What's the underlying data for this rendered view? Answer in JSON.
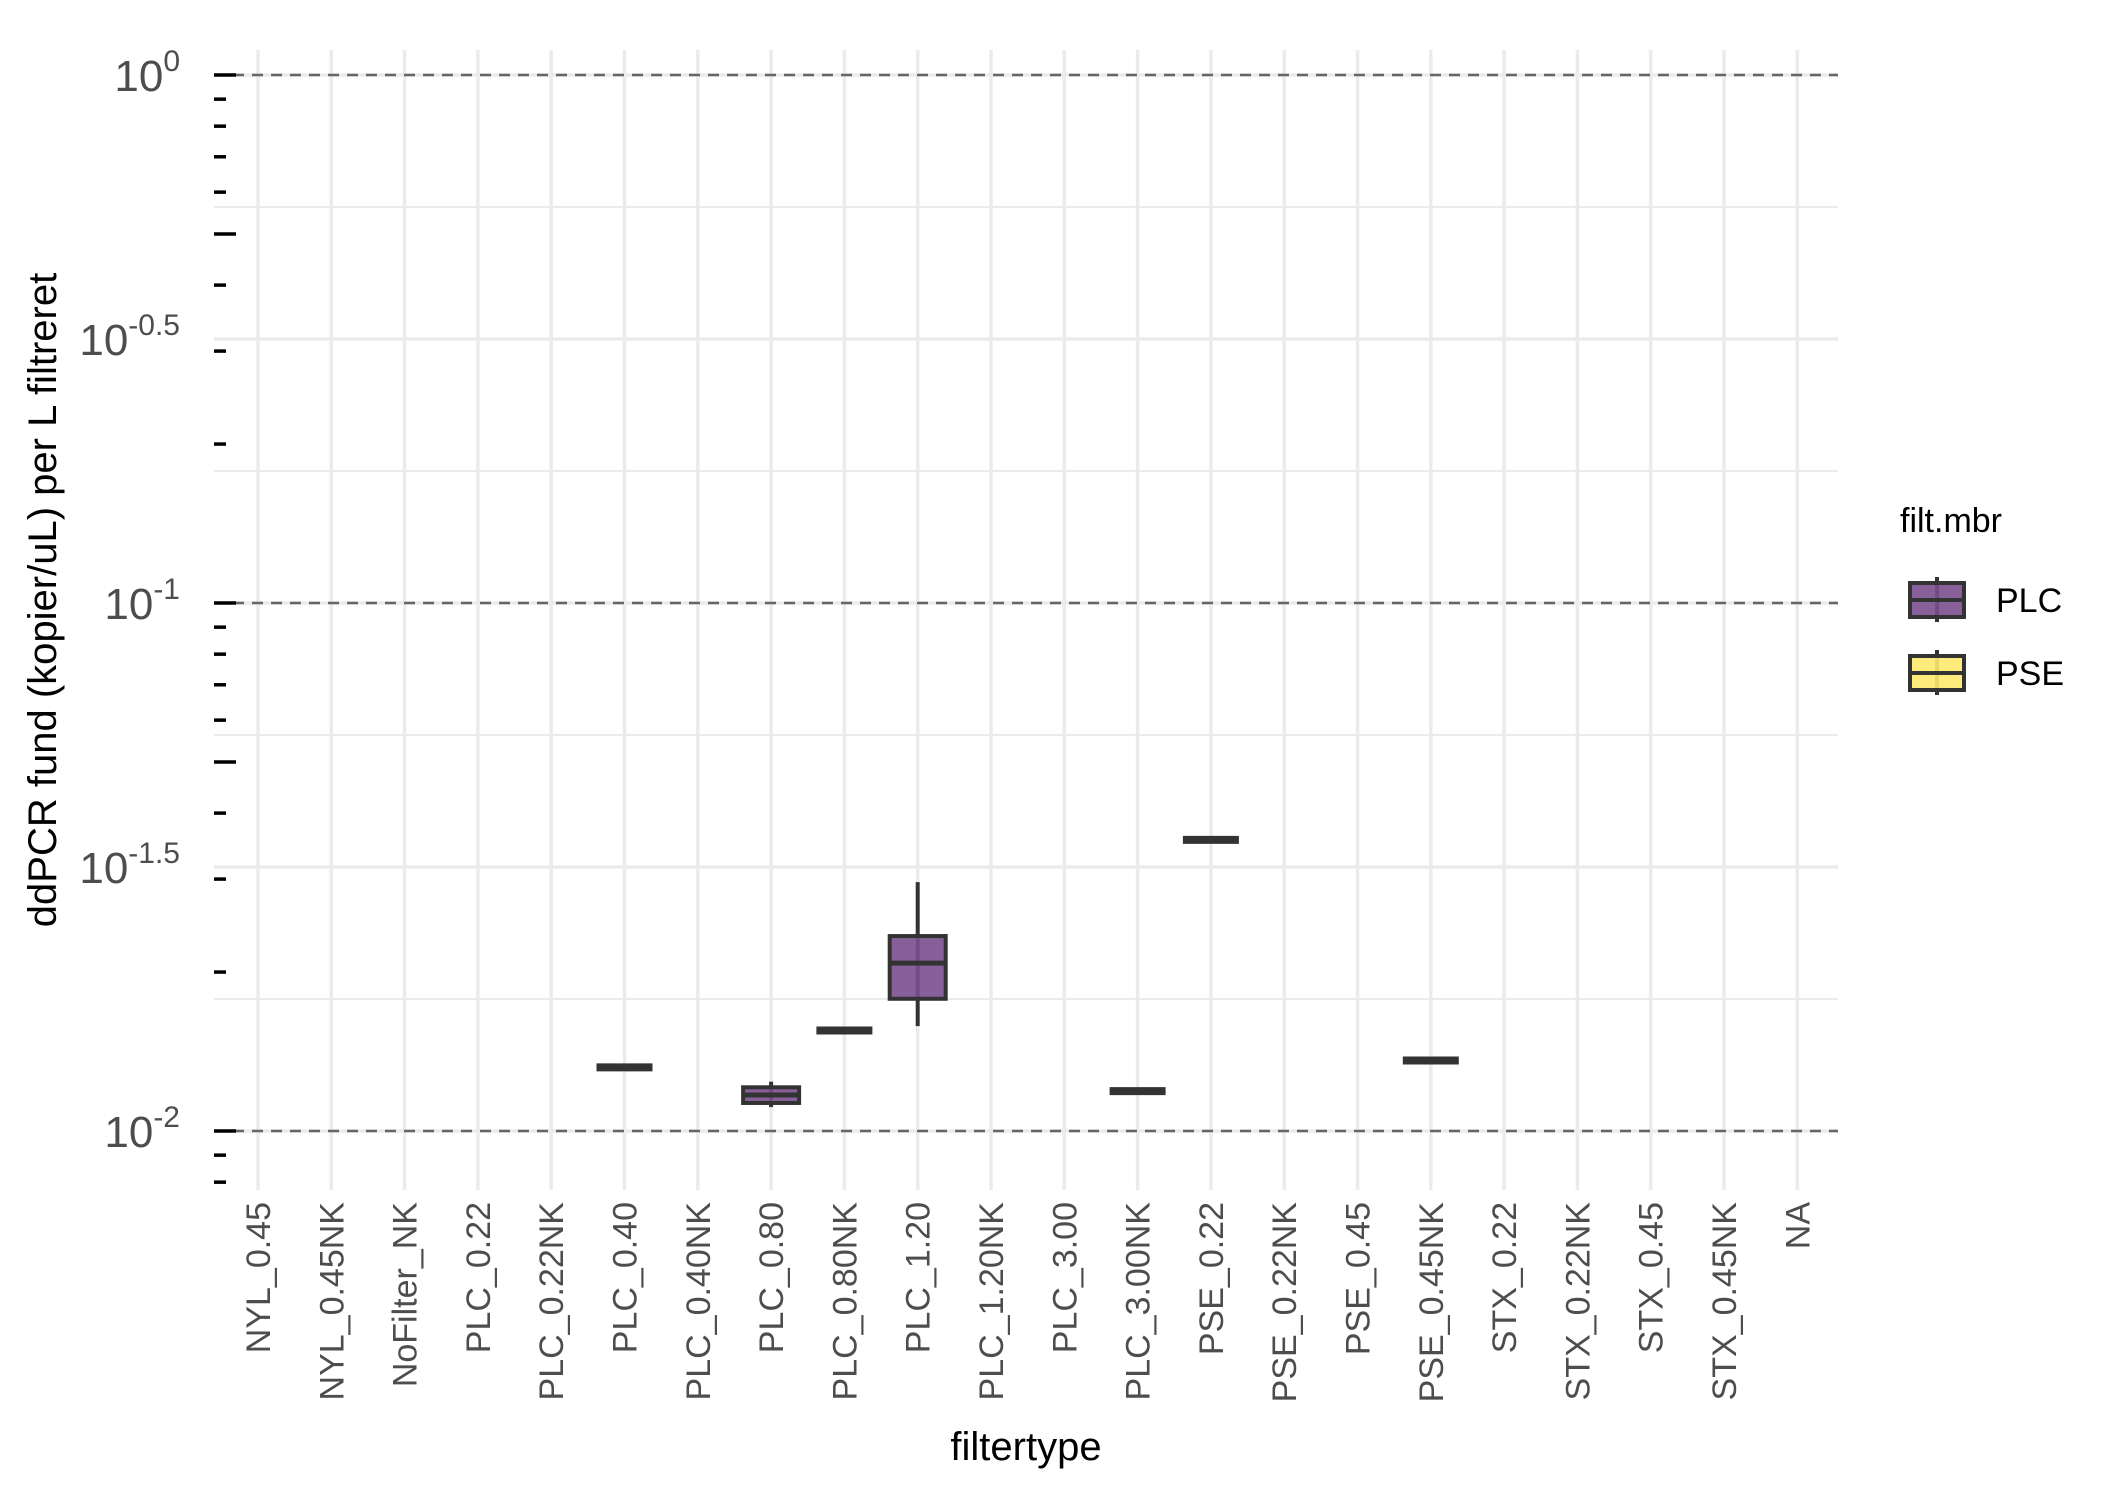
{
  "chart_data": {
    "type": "box",
    "xlabel": "filtertype",
    "ylabel": "ddPCR fund (kopier/uL) per L filtreret",
    "yscale": "log10",
    "ylim": [
      0.0069,
      1.0
    ],
    "y_ticks": [
      {
        "base": "10",
        "exp": "0"
      },
      {
        "base": "10",
        "exp": "-0.5"
      },
      {
        "base": "10",
        "exp": "-1"
      },
      {
        "base": "10",
        "exp": "-1.5"
      },
      {
        "base": "10",
        "exp": "-2"
      }
    ],
    "reference_lines": [
      1.0,
      0.1,
      0.01
    ],
    "categories": [
      "NYL_0.45",
      "NYL_0.45NK",
      "NoFilter_NK",
      "PLC_0.22",
      "PLC_0.22NK",
      "PLC_0.40",
      "PLC_0.40NK",
      "PLC_0.80",
      "PLC_0.80NK",
      "PLC_1.20",
      "PLC_1.20NK",
      "PLC_3.00",
      "PLC_3.00NK",
      "PSE_0.22",
      "PSE_0.22NK",
      "PSE_0.45",
      "PSE_0.45NK",
      "STX_0.22",
      "STX_0.22NK",
      "STX_0.45",
      "STX_0.45NK",
      "NA"
    ],
    "legend": {
      "title": "filt.mbr",
      "position": "right",
      "entries": [
        {
          "label": "PLC",
          "color": "#7B4F8E"
        },
        {
          "label": "PSE",
          "color": "#FDE96E"
        }
      ]
    },
    "boxes": [
      {
        "category": "PLC_0.40",
        "group": "PLC",
        "min": 0.0132,
        "q1": 0.0132,
        "median": 0.0132,
        "q3": 0.0132,
        "max": 0.0132
      },
      {
        "category": "PLC_0.80",
        "group": "PLC",
        "min": 0.0111,
        "q1": 0.0113,
        "median": 0.0117,
        "q3": 0.0121,
        "max": 0.0124
      },
      {
        "category": "PLC_0.80NK",
        "group": "PLC",
        "min": 0.0155,
        "q1": 0.0155,
        "median": 0.0155,
        "q3": 0.0155,
        "max": 0.0155
      },
      {
        "category": "PLC_1.20",
        "group": "PLC",
        "min": 0.0158,
        "q1": 0.0178,
        "median": 0.0208,
        "q3": 0.0234,
        "max": 0.0296
      },
      {
        "category": "PLC_3.00NK",
        "group": "PLC",
        "min": 0.0119,
        "q1": 0.0119,
        "median": 0.0119,
        "q3": 0.0119,
        "max": 0.0119
      },
      {
        "category": "PSE_0.22",
        "group": "PLC",
        "min": 0.0356,
        "q1": 0.0356,
        "median": 0.0356,
        "q3": 0.0356,
        "max": 0.0356
      },
      {
        "category": "PSE_0.45NK",
        "group": "PLC",
        "min": 0.0136,
        "q1": 0.0136,
        "median": 0.0136,
        "q3": 0.0136,
        "max": 0.0136
      }
    ]
  }
}
